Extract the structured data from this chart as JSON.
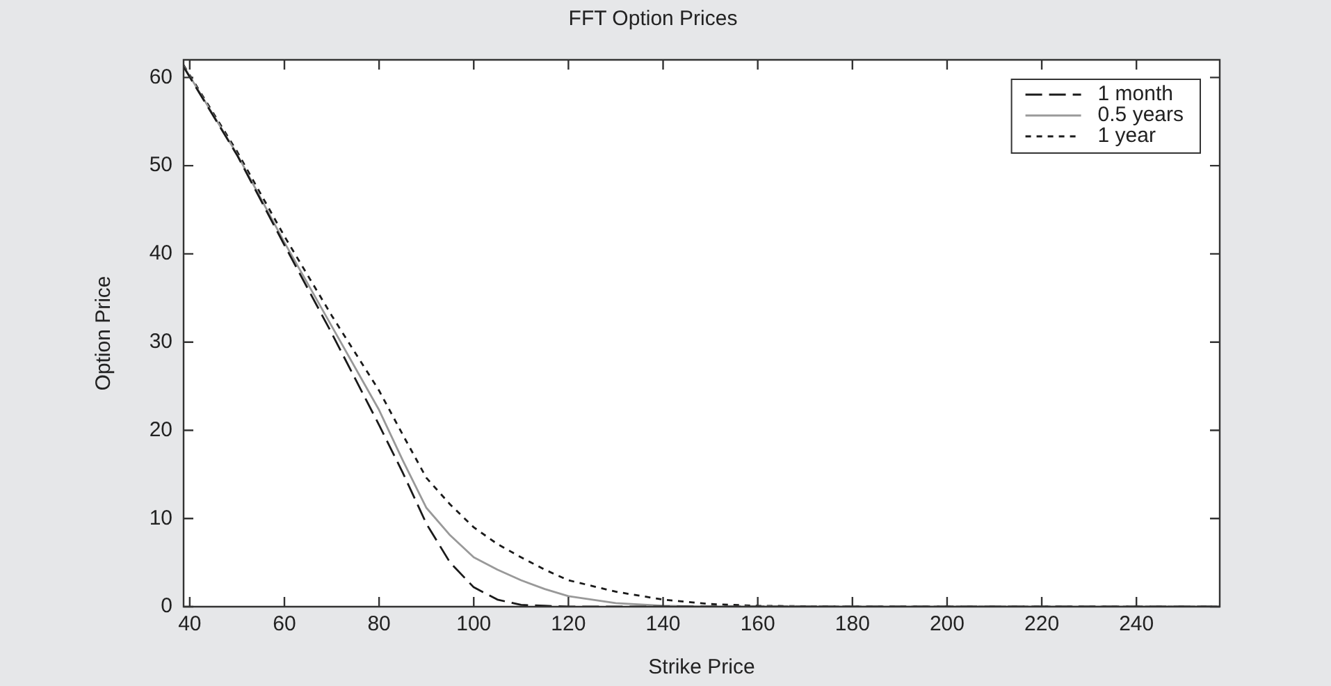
{
  "chart_data": {
    "type": "line",
    "title": "FFT Option Prices",
    "xlabel": "Strike Price",
    "ylabel": "Option Price",
    "xlim": [
      38.7,
      257.6
    ],
    "ylim": [
      0,
      62
    ],
    "xticks": [
      40,
      60,
      80,
      100,
      120,
      140,
      160,
      180,
      200,
      220,
      240
    ],
    "yticks": [
      0,
      10,
      20,
      30,
      40,
      50,
      60
    ],
    "grid": false,
    "legend": "top right",
    "marker": "none",
    "series": [
      {
        "name": "1 month",
        "color": "#1a1a1a",
        "line_style": "dashed",
        "x": [
          38.7,
          50,
          60,
          70,
          80,
          85,
          90,
          95,
          100,
          105,
          110,
          115,
          120,
          140,
          180,
          256
        ],
        "values": [
          61.2,
          51.2,
          41.0,
          31.0,
          20.6,
          15.2,
          9.4,
          5.0,
          2.2,
          0.8,
          0.2,
          0.1,
          0,
          0,
          0,
          0
        ]
      },
      {
        "name": "0.5 years",
        "color": "#999999",
        "line_style": "solid",
        "x": [
          38.7,
          50,
          60,
          70,
          80,
          85,
          90,
          95,
          100,
          105,
          110,
          115,
          120,
          130,
          140,
          150,
          180,
          257.6
        ],
        "values": [
          61.3,
          51.3,
          41.3,
          31.8,
          22.3,
          16.6,
          11.2,
          8.1,
          5.6,
          4.2,
          3.0,
          2.0,
          1.2,
          0.4,
          0.1,
          0,
          0,
          0
        ]
      },
      {
        "name": "1 year",
        "color": "#1a1a1a",
        "line_style": "dotted",
        "x": [
          38.7,
          50,
          60,
          70,
          80,
          85,
          90,
          95,
          100,
          105,
          110,
          115,
          120,
          130,
          140,
          150,
          160,
          180,
          257
        ],
        "values": [
          61.4,
          51.6,
          42.0,
          33.0,
          24.5,
          19.5,
          14.6,
          11.6,
          9.0,
          7.1,
          5.6,
          4.2,
          3.0,
          1.7,
          0.8,
          0.3,
          0.1,
          0,
          0
        ]
      }
    ]
  }
}
